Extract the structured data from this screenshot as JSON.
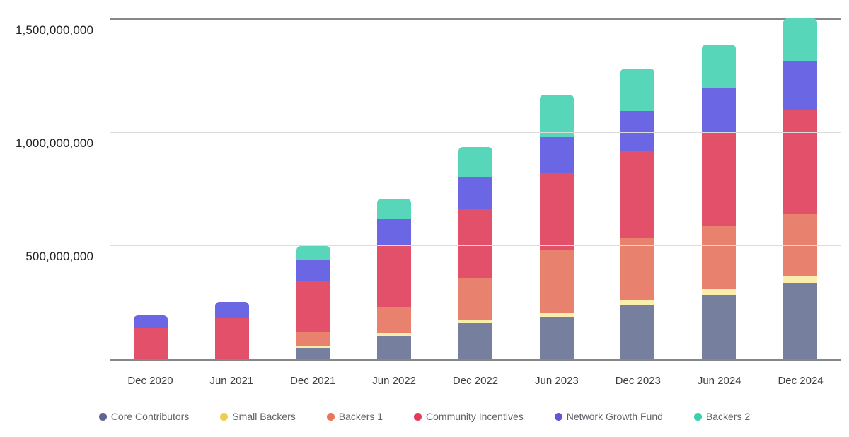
{
  "chart_data": {
    "type": "bar",
    "stacked": true,
    "title": "",
    "xlabel": "",
    "ylabel": "",
    "categories": [
      "Dec 2020",
      "Jun 2021",
      "Dec 2021",
      "Jun 2022",
      "Dec 2022",
      "Jun 2023",
      "Dec 2023",
      "Jun 2024",
      "Dec 2024"
    ],
    "series": [
      {
        "name": "Core Contributors",
        "bar_color": "#76809e",
        "legend_color": "#5e6591",
        "values": [
          0,
          0,
          50000000,
          103000000,
          158000000,
          184000000,
          240000000,
          283000000,
          338000000
        ]
      },
      {
        "name": "Small Backers",
        "bar_color": "#fbedaa",
        "legend_color": "#f1cd4f",
        "values": [
          0,
          0,
          9000000,
          13000000,
          16000000,
          21000000,
          22000000,
          26000000,
          29000000
        ]
      },
      {
        "name": "Backers 1",
        "bar_color": "#e8826f",
        "legend_color": "#ec7458",
        "values": [
          0,
          0,
          60000000,
          115000000,
          186000000,
          277000000,
          274000000,
          280000000,
          278000000
        ]
      },
      {
        "name": "Community Incentives",
        "bar_color": "#e3506a",
        "legend_color": "#e43a5d",
        "values": [
          139000000,
          180000000,
          226000000,
          274000000,
          304000000,
          342000000,
          383000000,
          414000000,
          454000000
        ]
      },
      {
        "name": "Network Growth Fund",
        "bar_color": "#6b67e4",
        "legend_color": "#6155dc",
        "values": [
          56000000,
          72000000,
          94000000,
          117000000,
          141000000,
          158000000,
          177000000,
          198000000,
          221000000
        ]
      },
      {
        "name": "Backers 2",
        "bar_color": "#58d6ba",
        "legend_color": "#3acfad",
        "values": [
          0,
          0,
          62000000,
          86000000,
          133000000,
          187000000,
          188000000,
          189000000,
          187000000
        ]
      }
    ],
    "stack_order_bottom_to_top": [
      "Core Contributors",
      "Small Backers",
      "Backers 1",
      "Community Incentives",
      "Network Growth Fund",
      "Backers 2"
    ],
    "y_axis": {
      "min": 0,
      "max": 1500000000,
      "tick_interval": 500000000,
      "ticks": [
        {
          "value": 1500000000,
          "label": "1,500,000,000"
        },
        {
          "value": 1000000000,
          "label": "1,000,000,000"
        },
        {
          "value": 500000000,
          "label": "500,000,000"
        }
      ]
    },
    "grid": true,
    "legend_position": "bottom",
    "plot_colors": {
      "gridline": "#dcdcdc",
      "axis_line": "#878787",
      "plot_side_border": "#cfcfcf",
      "background": "#ffffff",
      "y_tick_text": "#212121",
      "x_tick_text": "#3c4043",
      "legend_text": "#5f6368"
    }
  }
}
